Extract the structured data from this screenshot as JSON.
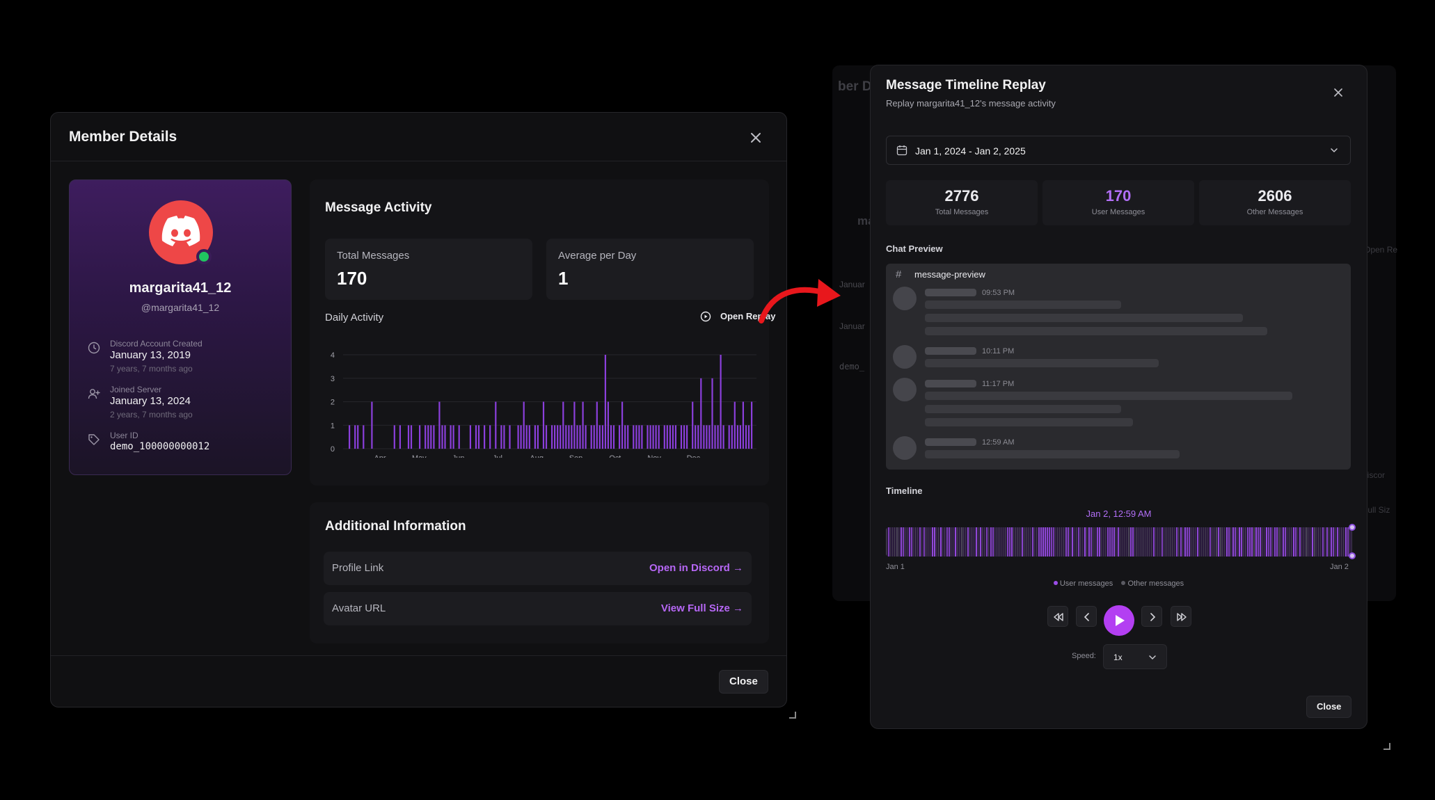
{
  "member_details": {
    "title": "Member Details",
    "profile": {
      "display_name": "margarita41_12",
      "handle": "@margarita41_12",
      "status": "online",
      "account_created": {
        "label": "Discord Account Created",
        "value": "January 13, 2019",
        "relative": "7 years, 7 months ago"
      },
      "joined_server": {
        "label": "Joined Server",
        "value": "January 13, 2024",
        "relative": "2 years, 7 months ago"
      },
      "user_id": {
        "label": "User ID",
        "value": "demo_100000000012"
      }
    },
    "message_activity": {
      "title": "Message Activity",
      "total_messages": {
        "label": "Total Messages",
        "value": "170"
      },
      "average_per_day": {
        "label": "Average per Day",
        "value": "1"
      },
      "daily_activity_label": "Daily Activity",
      "open_replay_label": "Open Replay"
    },
    "additional_info": {
      "title": "Additional Information",
      "profile_link": {
        "label": "Profile Link",
        "action": "Open in Discord →"
      },
      "avatar_url": {
        "label": "Avatar URL",
        "action": "View Full Size →"
      }
    },
    "close_label": "Close"
  },
  "chart_data": {
    "type": "bar",
    "title": "Daily Activity",
    "xlabel": "",
    "ylabel": "",
    "ylim": [
      0,
      4
    ],
    "yticks": [
      "0",
      "1",
      "2",
      "3",
      "4"
    ],
    "month_labels": [
      "Apr",
      "May",
      "Jun",
      "Jul",
      "Aug",
      "Sep",
      "Oct",
      "Nov",
      "Dec"
    ],
    "values": [
      1,
      0,
      1,
      1,
      0,
      1,
      0,
      0,
      2,
      0,
      0,
      0,
      0,
      0,
      0,
      0,
      1,
      0,
      1,
      0,
      0,
      1,
      1,
      0,
      0,
      1,
      0,
      1,
      1,
      1,
      1,
      0,
      2,
      1,
      1,
      0,
      1,
      1,
      0,
      1,
      0,
      0,
      0,
      1,
      0,
      1,
      1,
      0,
      1,
      0,
      1,
      0,
      2,
      0,
      1,
      1,
      0,
      1,
      0,
      0,
      1,
      1,
      2,
      1,
      1,
      0,
      1,
      1,
      0,
      2,
      1,
      0,
      1,
      1,
      1,
      1,
      2,
      1,
      1,
      1,
      2,
      1,
      1,
      2,
      1,
      0,
      1,
      1,
      2,
      1,
      1,
      4,
      2,
      1,
      1,
      0,
      1,
      2,
      1,
      1,
      0,
      1,
      1,
      1,
      1,
      0,
      1,
      1,
      1,
      1,
      1,
      0,
      1,
      1,
      1,
      1,
      1,
      0,
      1,
      1,
      1,
      0,
      2,
      1,
      1,
      3,
      1,
      1,
      1,
      3,
      1,
      1,
      4,
      1,
      0,
      1,
      1,
      2,
      1,
      1,
      2,
      1,
      1,
      2
    ],
    "grid": true,
    "bar_color": "#8b3fdc"
  },
  "replay": {
    "title": "Message Timeline Replay",
    "subtitle": "Replay margarita41_12's message activity",
    "date_range": "Jan 1, 2024 - Jan 2, 2025",
    "stats": [
      {
        "value": "2776",
        "label": "Total Messages"
      },
      {
        "value": "170",
        "label": "User Messages"
      },
      {
        "value": "2606",
        "label": "Other Messages"
      }
    ],
    "chat_preview_label": "Chat Preview",
    "channel_name": "message-preview",
    "message_times": [
      "09:53 PM",
      "10:11 PM",
      "11:17 PM",
      "12:59 AM"
    ],
    "timeline_label": "Timeline",
    "current_time": "Jan 2, 12:59 AM",
    "timeline_progress": 1.0,
    "timeline_start": "Jan 1",
    "timeline_end": "Jan 2",
    "legend_user": "User messages",
    "legend_other": "Other messages",
    "speed_label": "Speed:",
    "speed_value": "1x",
    "close_label": "Close",
    "colors": {
      "accent": "#b33ff2",
      "user_msg": "#9b4de8",
      "other_msg": "#5a5a62"
    }
  },
  "ghost_text": {
    "title_fragment": "ber De",
    "name_fragment": "ma",
    "date_fragment_1": "Januar",
    "date_fragment_2": "Januar",
    "id_fragment": "demo_",
    "open_re": "Open Re",
    "discord_fragment": "Discor",
    "full_size": "Full Siz"
  }
}
